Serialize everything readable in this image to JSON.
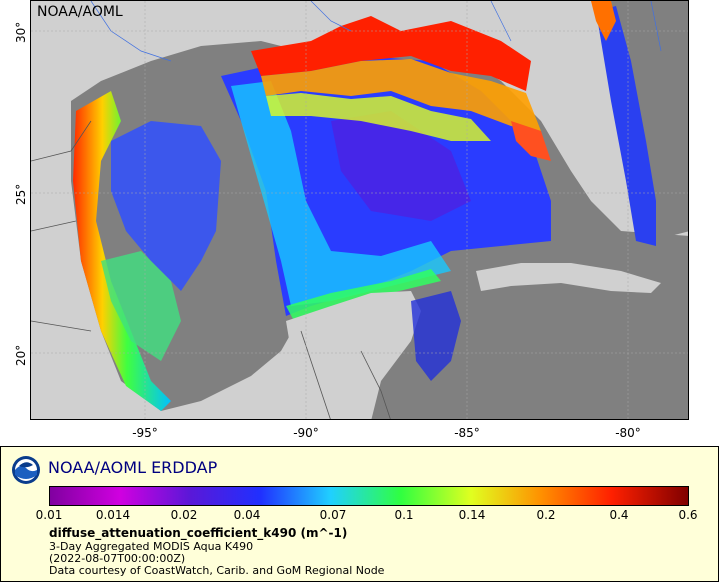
{
  "map": {
    "watermark": "NOAA/AOML",
    "lat_ticks": [
      "30°",
      "25°",
      "20°"
    ],
    "lon_ticks": [
      "-95°",
      "-90°",
      "-85°",
      "-80°"
    ]
  },
  "legend": {
    "title": "NOAA/AOML ERDDAP",
    "colorbar_labels": [
      "0.01",
      "0.014",
      "0.02",
      "0.04",
      "0.07",
      "0.1",
      "0.14",
      "0.2",
      "0.4",
      "0.6"
    ],
    "variable": "diffuse_attenuation_coefficient_k490 (m^-1)",
    "dataset": "3-Day Aggregated MODIS Aqua K490",
    "time": "(2022-08-07T00:00:00Z)",
    "credit": "Data courtesy of CoastWatch, Carib. and GoM Regional Node"
  },
  "colors": {
    "land": "#d0d0d0",
    "nodata": "#808080",
    "legend_bg": "#ffffd9",
    "title_color": "#000080"
  }
}
